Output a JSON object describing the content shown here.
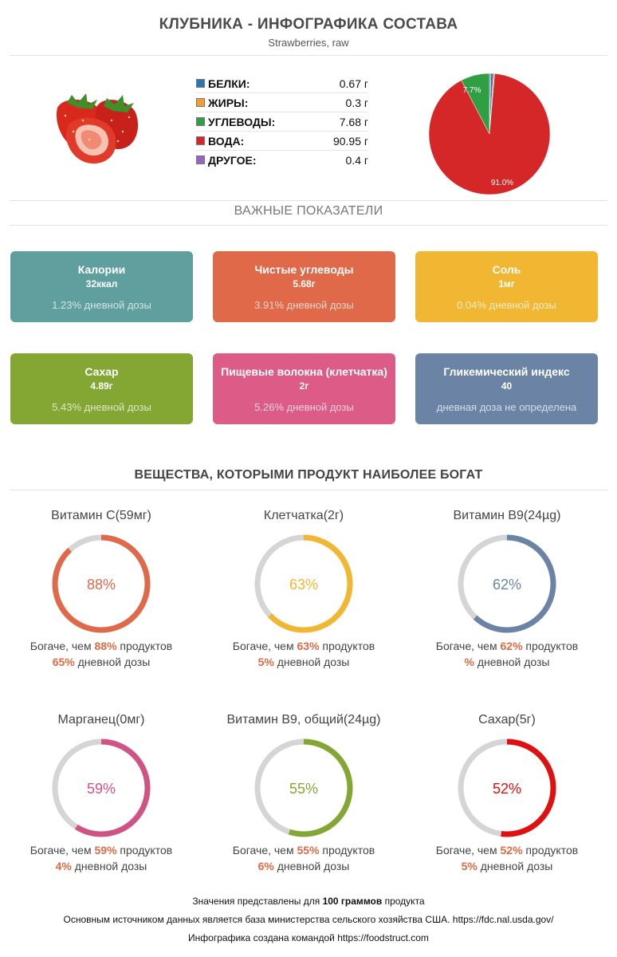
{
  "header": {
    "title": "КЛУБНИКА - ИНФОГРАФИКА СОСТАВА",
    "subtitle": "Strawberries, raw"
  },
  "macros": [
    {
      "name": "БЕЛКИ:",
      "value": "0.67 г",
      "color": "#2e75b6"
    },
    {
      "name": "ЖИРЫ:",
      "value": "0.3 г",
      "color": "#f39c33"
    },
    {
      "name": "УГЛЕВОДЫ:",
      "value": "7.68 г",
      "color": "#2ea043"
    },
    {
      "name": "ВОДА:",
      "value": "90.95 г",
      "color": "#d62728"
    },
    {
      "name": "ДРУГОЕ:",
      "value": "0.4 г",
      "color": "#9467bd"
    }
  ],
  "chart_data": {
    "type": "pie",
    "slices": [
      {
        "label": "БЕЛКИ",
        "value": 0.67,
        "color": "#2e75b6"
      },
      {
        "label": "ЖИРЫ",
        "value": 0.3,
        "color": "#f39c33"
      },
      {
        "label": "УГЛЕВОДЫ",
        "value": 7.68,
        "color": "#2ea043"
      },
      {
        "label": "ВОДА",
        "value": 90.95,
        "color": "#d62728"
      },
      {
        "label": "ДРУГОЕ",
        "value": 0.4,
        "color": "#9467bd"
      }
    ],
    "data_labels": {
      "carbs": "7.7%",
      "water": "91.0%"
    }
  },
  "key_section": {
    "title": "ВАЖНЫЕ ПОКАЗАТЕЛИ"
  },
  "cards": [
    {
      "title": "Калории",
      "value": "32ккал",
      "daily": "1.23% дневной дозы",
      "color": "#5fa09e"
    },
    {
      "title": "Чистые углеводы",
      "value": "5.68г",
      "daily": "3.91% дневной дозы",
      "color": "#e0694a"
    },
    {
      "title": "Соль",
      "value": "1мг",
      "daily": "0.04% дневной дозы",
      "color": "#f1b732"
    },
    {
      "title": "Сахар",
      "value": "4.89г",
      "daily": "5.43% дневной дозы",
      "color": "#84a734"
    },
    {
      "title": "Пищевые волокна (клетчатка)",
      "value": "2г",
      "daily": "5.26% дневной дозы",
      "color": "#dd5c87"
    },
    {
      "title": "Гликемический индекс",
      "value": "40",
      "daily": "дневная доза не определена",
      "color": "#6b84a6"
    }
  ],
  "rich_section": {
    "title": "ВЕЩЕСТВА, КОТОРЫМИ ПРОДУКТ НАИБОЛЕЕ БОГАТ"
  },
  "rings_text": {
    "richer_prefix": "Богаче, чем",
    "richer_suffix": "продуктов",
    "daily_suffix": "дневной дозы"
  },
  "rings": [
    {
      "title": "Витамин C(59мг)",
      "pct": 88,
      "pct_label": "88%",
      "richer": "88%",
      "daily": "65%",
      "color": "#e0694a"
    },
    {
      "title": "Клетчатка(2г)",
      "pct": 63,
      "pct_label": "63%",
      "richer": "63%",
      "daily": "5%",
      "color": "#f1b732"
    },
    {
      "title": "Витамин B9(24µg)",
      "pct": 62,
      "pct_label": "62%",
      "richer": "62%",
      "daily": "%",
      "color": "#6b84a6"
    },
    {
      "title": "Марганец(0мг)",
      "pct": 59,
      "pct_label": "59%",
      "richer": "59%",
      "daily": "4%",
      "color": "#cf5384"
    },
    {
      "title": "Витамин B9, общий(24µg)",
      "pct": 55,
      "pct_label": "55%",
      "richer": "55%",
      "daily": "6%",
      "color": "#84a734"
    },
    {
      "title": "Сахар(5г)",
      "pct": 52,
      "pct_label": "52%",
      "richer": "52%",
      "daily": "5%",
      "color": "#e01010"
    }
  ],
  "footer": {
    "line1_a": "Значения представлены для",
    "line1_b": "100 граммов",
    "line1_c": "продукта",
    "line2": "Основным источником данных является база министерства сельского хозяйства США. https://fdc.nal.usda.gov/",
    "line3": "Инфографика создана командой https://foodstruct.com"
  }
}
